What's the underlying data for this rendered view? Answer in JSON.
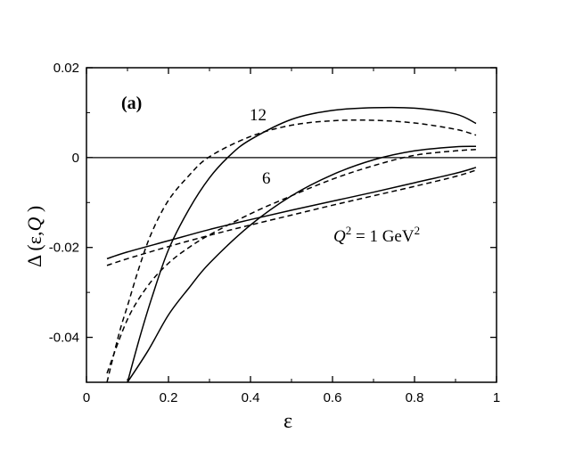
{
  "chart_data": {
    "type": "line",
    "panel_label": "(a)",
    "xlabel": "ε",
    "ylabel": {
      "delta": "Δ",
      "paren": "(ε,",
      "q": "Q",
      "close": ")"
    },
    "xlim": [
      0,
      1
    ],
    "ylim": [
      -0.05,
      0.02
    ],
    "x_ticks": [
      "0",
      "0.2",
      "0.4",
      "0.6",
      "0.8",
      "1"
    ],
    "y_ticks": [
      "0.02",
      "0",
      "-0.02",
      "-0.04"
    ],
    "x_tick_values": [
      0,
      0.2,
      0.4,
      0.6,
      0.8,
      1.0
    ],
    "y_tick_values": [
      0.02,
      0,
      -0.02,
      -0.04
    ],
    "reference_line_y": 0,
    "annotations": {
      "label_12": "12",
      "label_6": "6",
      "q_label": {
        "q": "Q",
        "sup1": "2",
        "mid": " = 1 GeV",
        "sup2": "2"
      }
    },
    "series": [
      {
        "group": "Q2=1 GeV2",
        "style": "solid",
        "color": "#000000",
        "x": [
          0.05,
          0.1,
          0.2,
          0.3,
          0.4,
          0.5,
          0.6,
          0.7,
          0.8,
          0.9,
          0.95
        ],
        "y": [
          -0.0225,
          -0.021,
          -0.0185,
          -0.016,
          -0.0138,
          -0.0117,
          -0.0097,
          -0.0077,
          -0.0056,
          -0.0035,
          -0.0022
        ]
      },
      {
        "group": "Q2=1 GeV2",
        "style": "dashed",
        "color": "#000000",
        "x": [
          0.05,
          0.1,
          0.2,
          0.3,
          0.4,
          0.5,
          0.6,
          0.7,
          0.8,
          0.9,
          0.95
        ],
        "y": [
          -0.024,
          -0.0225,
          -0.0198,
          -0.0173,
          -0.015,
          -0.0128,
          -0.0106,
          -0.0085,
          -0.0064,
          -0.0042,
          -0.0028
        ]
      },
      {
        "group": "Q2=6 GeV2",
        "style": "solid",
        "color": "#000000",
        "x": [
          0.1,
          0.15,
          0.2,
          0.25,
          0.3,
          0.4,
          0.5,
          0.6,
          0.7,
          0.8,
          0.9,
          0.95
        ],
        "y": [
          -0.05,
          -0.043,
          -0.035,
          -0.029,
          -0.0235,
          -0.015,
          -0.0085,
          -0.0038,
          -0.0005,
          0.0015,
          0.0024,
          0.0025
        ]
      },
      {
        "group": "Q2=6 GeV2",
        "style": "dashed",
        "color": "#000000",
        "x": [
          0.05,
          0.1,
          0.15,
          0.2,
          0.25,
          0.3,
          0.4,
          0.5,
          0.6,
          0.7,
          0.8,
          0.9,
          0.95
        ],
        "y": [
          -0.048,
          -0.036,
          -0.0285,
          -0.0235,
          -0.02,
          -0.0172,
          -0.0125,
          -0.0085,
          -0.0048,
          -0.0018,
          0.0005,
          0.0015,
          0.0018
        ]
      },
      {
        "group": "Q2=12 GeV2",
        "style": "solid",
        "color": "#000000",
        "x": [
          0.1,
          0.13,
          0.16,
          0.2,
          0.25,
          0.3,
          0.35,
          0.4,
          0.5,
          0.6,
          0.7,
          0.8,
          0.9,
          0.95
        ],
        "y": [
          -0.05,
          -0.04,
          -0.031,
          -0.0205,
          -0.0115,
          -0.0045,
          0.0005,
          0.004,
          0.0085,
          0.0105,
          0.0111,
          0.011,
          0.0097,
          0.0076
        ]
      },
      {
        "group": "Q2=12 GeV2",
        "style": "dashed",
        "color": "#000000",
        "x": [
          0.05,
          0.08,
          0.1,
          0.13,
          0.16,
          0.2,
          0.25,
          0.3,
          0.4,
          0.5,
          0.6,
          0.7,
          0.8,
          0.9,
          0.95
        ],
        "y": [
          -0.05,
          -0.039,
          -0.033,
          -0.024,
          -0.0165,
          -0.0095,
          -0.004,
          0.0002,
          0.0047,
          0.0072,
          0.0082,
          0.0083,
          0.0077,
          0.0063,
          0.005
        ]
      }
    ]
  }
}
